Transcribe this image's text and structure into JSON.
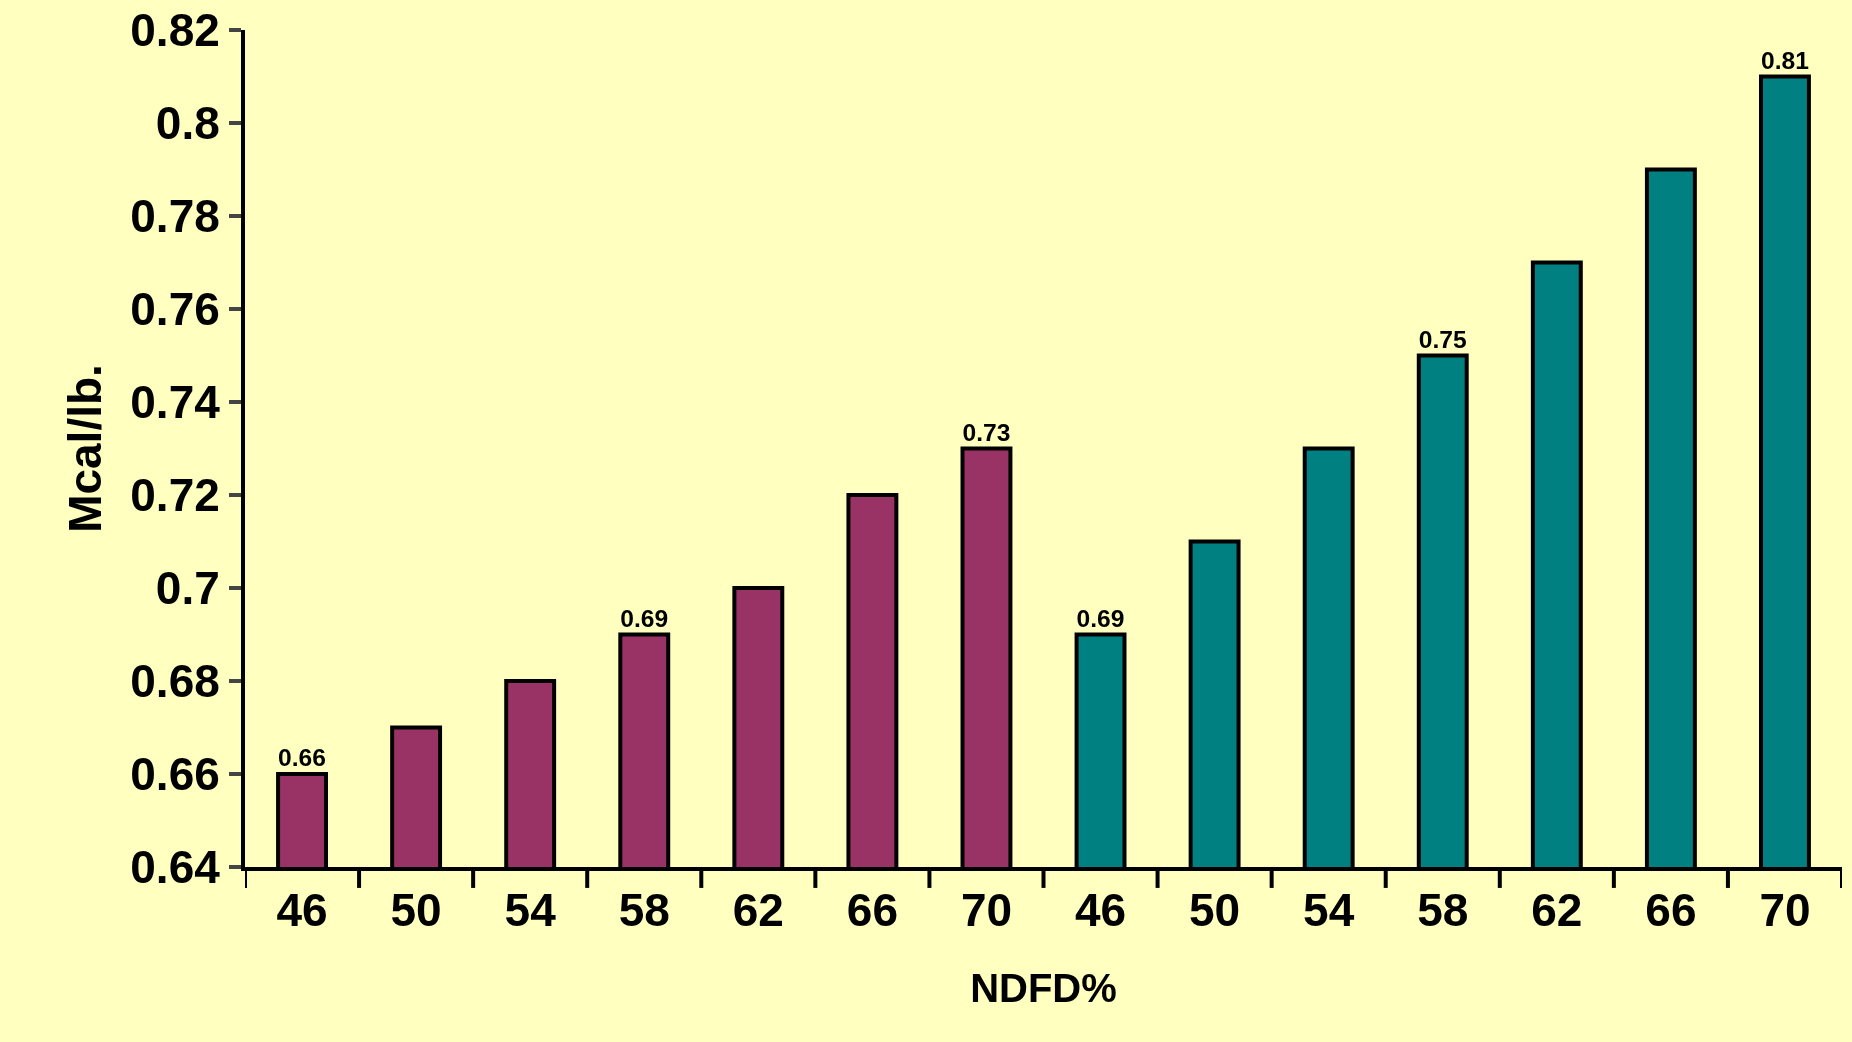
{
  "chart_data": {
    "type": "bar",
    "xlabel": "NDFD%",
    "ylabel": "Mcal/lb.",
    "categories": [
      "46",
      "50",
      "54",
      "58",
      "62",
      "66",
      "70",
      "46",
      "50",
      "54",
      "58",
      "62",
      "66",
      "70"
    ],
    "values": [
      0.66,
      0.67,
      0.68,
      0.69,
      0.7,
      0.72,
      0.73,
      0.69,
      0.71,
      0.73,
      0.75,
      0.77,
      0.79,
      0.81
    ],
    "colors": [
      "#993366",
      "#993366",
      "#993366",
      "#993366",
      "#993366",
      "#993366",
      "#993366",
      "#008080",
      "#008080",
      "#008080",
      "#008080",
      "#008080",
      "#008080",
      "#008080"
    ],
    "value_labels": [
      "0.66",
      null,
      null,
      "0.69",
      null,
      null,
      "0.73",
      "0.69",
      null,
      null,
      "0.75",
      null,
      null,
      "0.81"
    ],
    "ylim": [
      0.64,
      0.82
    ],
    "yticks": [
      0.64,
      0.66,
      0.68,
      0.7,
      0.72,
      0.74,
      0.76,
      0.78,
      0.8,
      0.82
    ],
    "grid": false
  }
}
